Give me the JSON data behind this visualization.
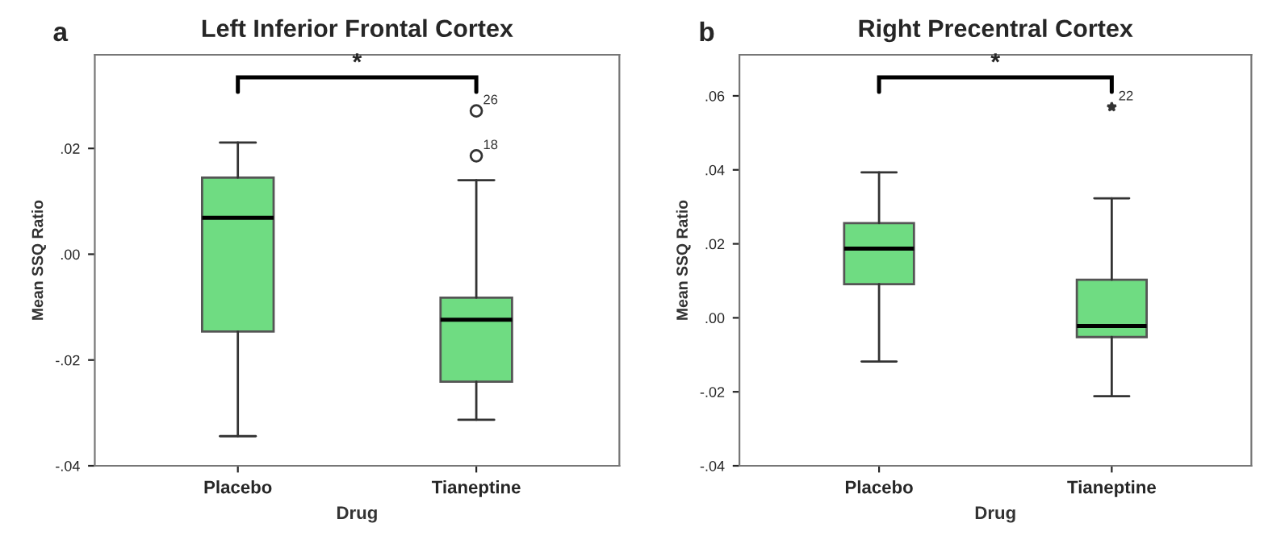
{
  "chart_data": [
    {
      "type": "box",
      "title": "Left Inferior Frontal Cortex",
      "xlabel": "Drug",
      "ylabel": "Mean SSQ Ratio",
      "categories": [
        "Placebo",
        "Tianeptine"
      ],
      "color": "#6fdc82",
      "marker": "circle",
      "grid": false,
      "boxes": [
        {
          "low": -0.0344,
          "q1": -0.0146,
          "median": 0.0069,
          "q3": 0.0145,
          "high": 0.0211
        },
        {
          "low": -0.0313,
          "q1": -0.0241,
          "median": -0.0124,
          "q3": -0.0082,
          "high": 0.014,
          "outliers": [
            0.0271,
            0.0186
          ]
        }
      ],
      "ylim": [
        -0.04,
        0.0377
      ],
      "yticks": [
        {
          "value": -0.04,
          "label": "-.04"
        },
        {
          "value": -0.02,
          "label": "-.02"
        },
        {
          "value": 0,
          "label": ".00"
        },
        {
          "value": 0.02,
          "label": ".02"
        }
      ],
      "annotations": [
        "a",
        "*",
        "26",
        "18"
      ]
    },
    {
      "type": "box",
      "title": "Right Precentral Cortex",
      "xlabel": "Drug",
      "ylabel": "Mean SSQ Ratio",
      "categories": [
        "Placebo",
        "Tianeptine"
      ],
      "color": "#6fdc82",
      "marker": "star",
      "grid": false,
      "boxes": [
        {
          "low": -0.0118,
          "q1": 0.0091,
          "median": 0.0187,
          "q3": 0.0256,
          "high": 0.0393
        },
        {
          "low": -0.0212,
          "q1": -0.0052,
          "median": -0.0022,
          "q3": 0.0103,
          "high": 0.0323,
          "outliers": [
            0.057
          ]
        }
      ],
      "ylim": [
        -0.04,
        0.0711
      ],
      "yticks": [
        {
          "value": -0.04,
          "label": "-.04"
        },
        {
          "value": -0.02,
          "label": "-.02"
        },
        {
          "value": 0,
          "label": ".00"
        },
        {
          "value": 0.02,
          "label": ".02"
        },
        {
          "value": 0.04,
          "label": ".04"
        },
        {
          "value": 0.06,
          "label": ".06"
        }
      ],
      "annotations": [
        "b",
        "*",
        "22"
      ]
    }
  ]
}
